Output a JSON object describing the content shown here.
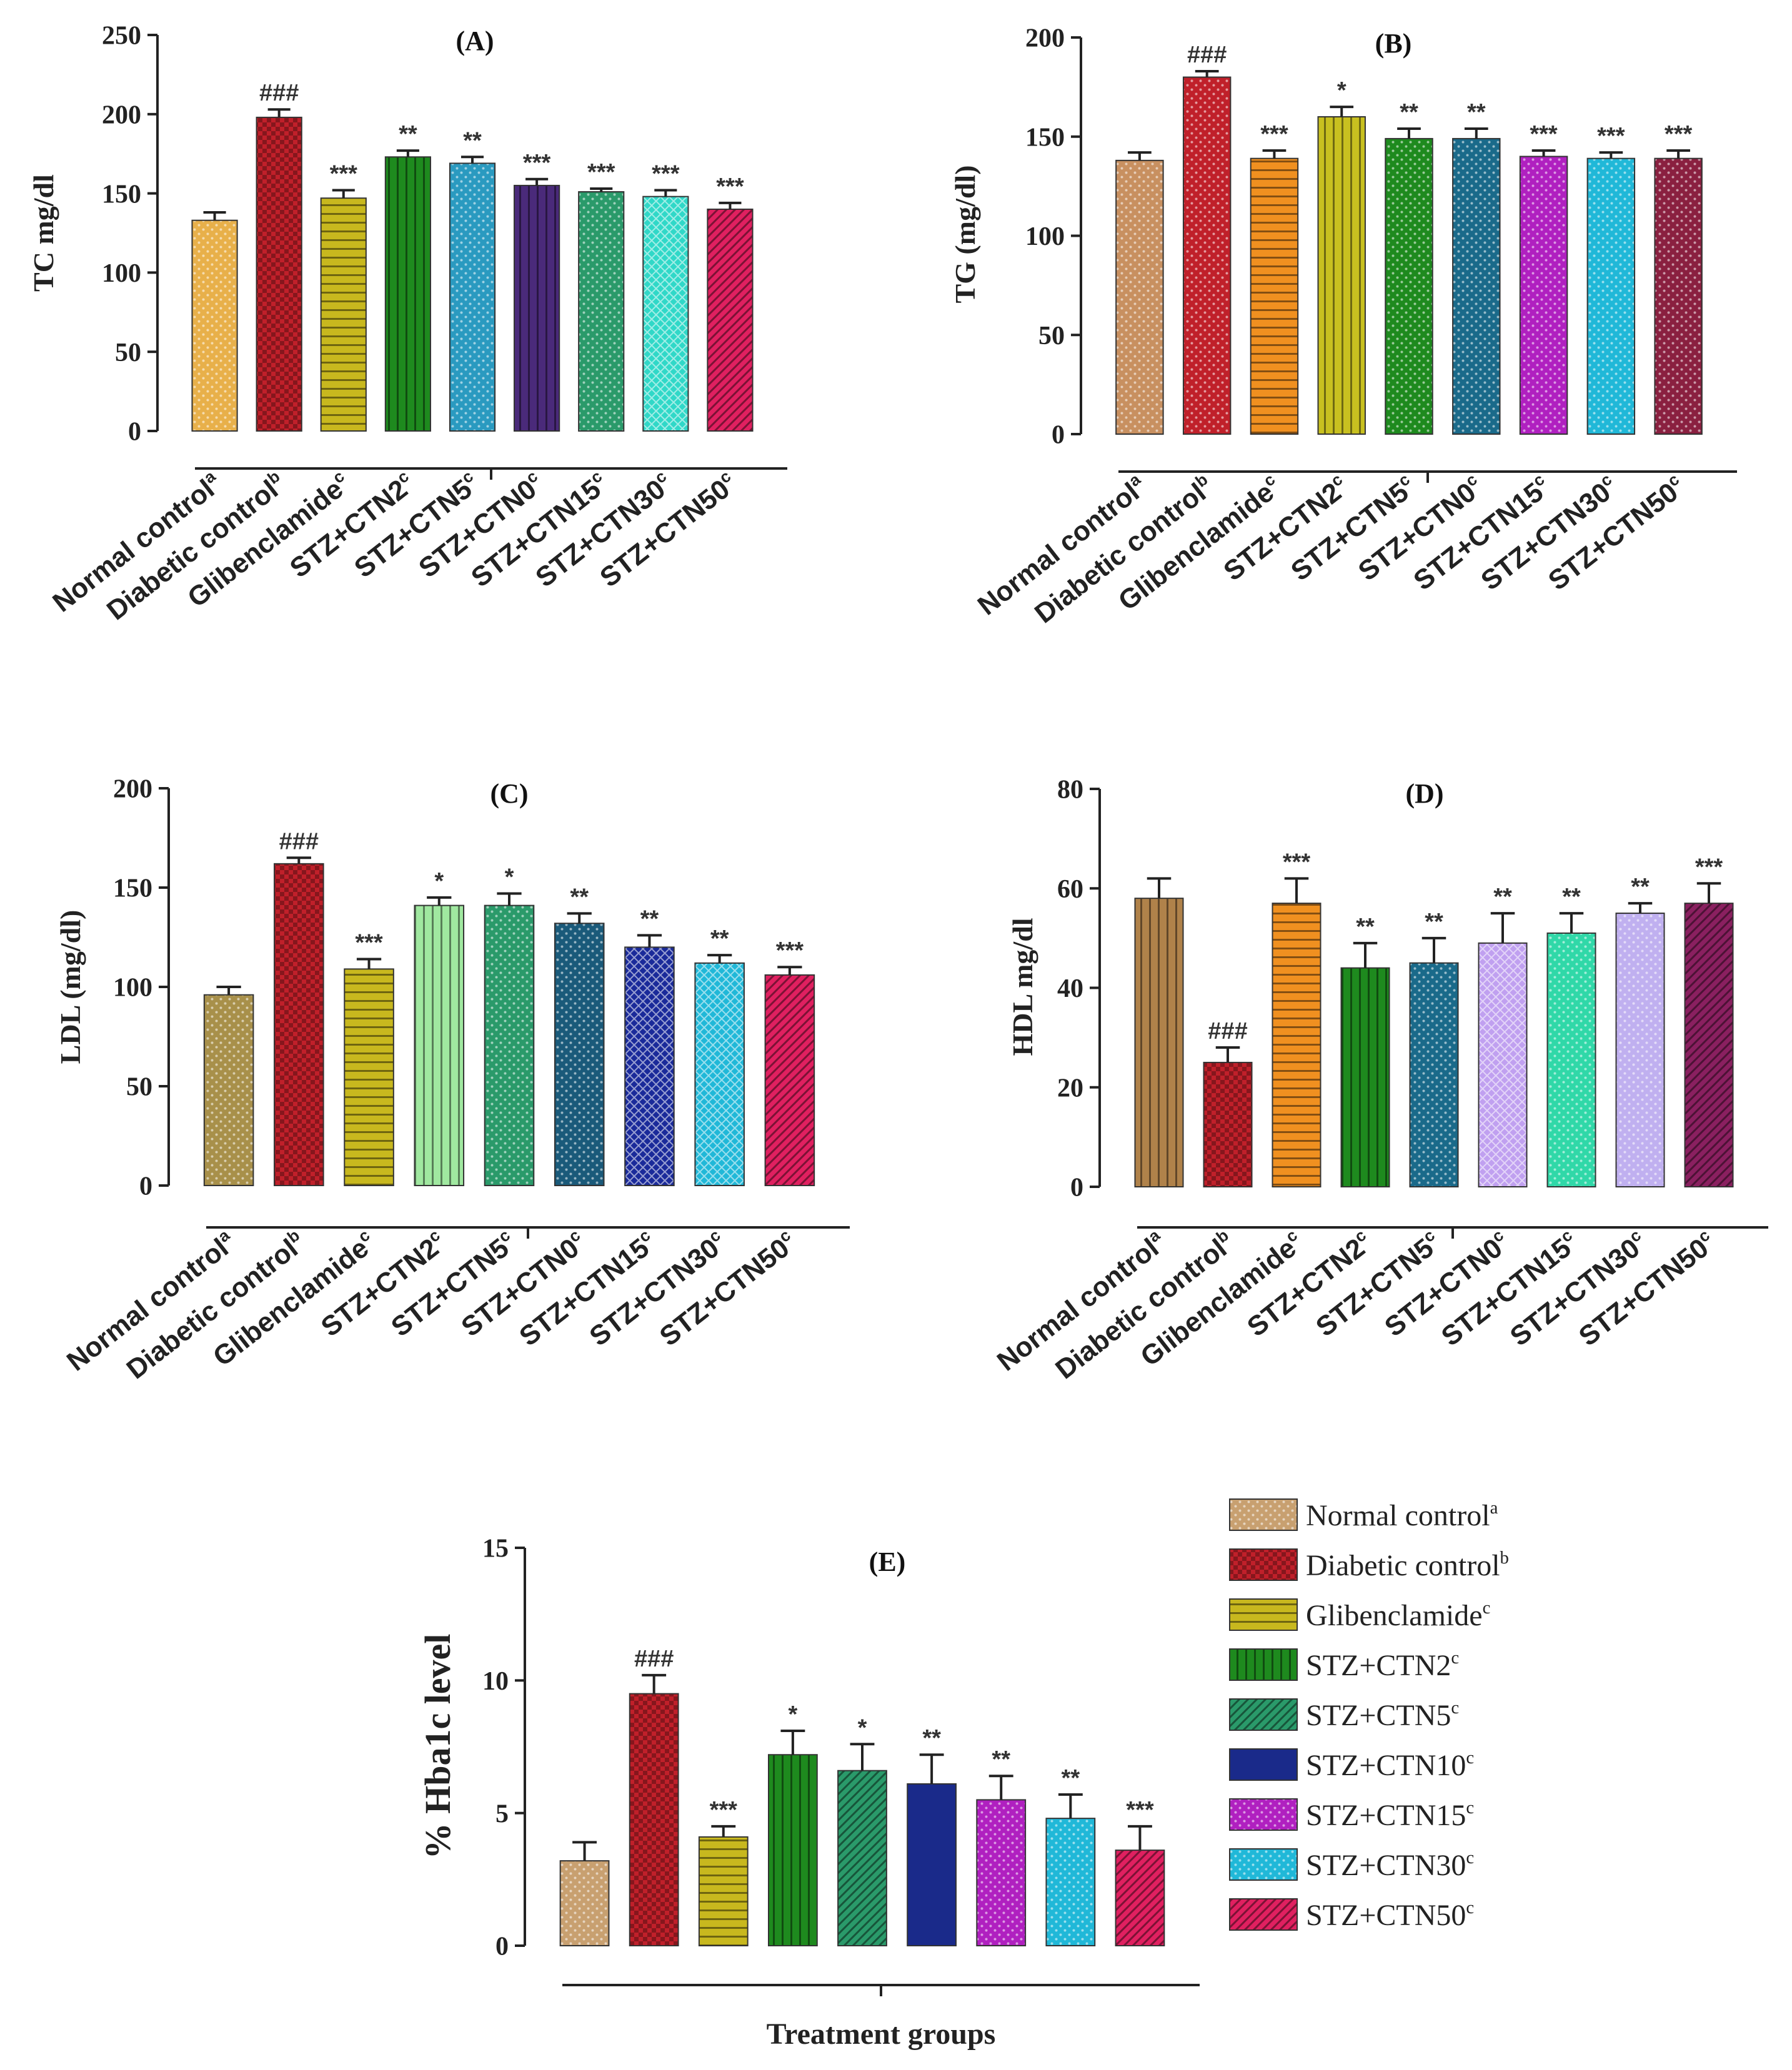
{
  "colors": {
    "normal_control": "#e8b04a",
    "diabetic_control": "#c0202a",
    "glibenclamide": "#c8b81e",
    "ctn2": "#1e8a1e",
    "ctn5": "#2a9a6a",
    "ctn10": "#1a2a8a",
    "ctn15": "#b020c0",
    "ctn30": "#20b8d8",
    "ctn50": "#e02060"
  },
  "chart_data": [
    {
      "id": "A",
      "type": "bar",
      "title": "(A)",
      "ylabel": "TC mg/dl",
      "xlabel": "",
      "ylim": [
        0,
        250
      ],
      "yticks": [
        "0",
        "50",
        "100",
        "150",
        "200",
        "250"
      ],
      "categories": [
        {
          "text": "Normal control",
          "sup": "a"
        },
        {
          "text": "Diabetic control",
          "sup": "b"
        },
        {
          "text": "Glibenclamide",
          "sup": "c"
        },
        {
          "text": "STZ+CTN2",
          "sup": "c"
        },
        {
          "text": "STZ+CTN5",
          "sup": "c"
        },
        {
          "text": "STZ+CTN0",
          "sup": "c"
        },
        {
          "text": "STZ+CTN15",
          "sup": "c"
        },
        {
          "text": "STZ+CTN30",
          "sup": "c"
        },
        {
          "text": "STZ+CTN50",
          "sup": "c"
        }
      ],
      "values": [
        133,
        198,
        147,
        173,
        169,
        155,
        151,
        148,
        140
      ],
      "errors": [
        5,
        5,
        5,
        4,
        4,
        4,
        2,
        4,
        4
      ],
      "significance": [
        "",
        "###",
        "***",
        "**",
        "**",
        "***",
        "***",
        "***",
        "***"
      ],
      "bar_colors": [
        "#e8b04a",
        "#c0202a",
        "#c8b81e",
        "#1e8a1e",
        "#2a9ac0",
        "#4a2a7a",
        "#2a9a6a",
        "#30d8c8",
        "#e02060"
      ],
      "patterns": [
        "dots",
        "check",
        "hlines",
        "vlines",
        "dots",
        "vlines",
        "dots",
        "cross",
        "diag"
      ]
    },
    {
      "id": "B",
      "type": "bar",
      "title": "(B)",
      "ylabel": "TG (mg/dl)",
      "xlabel": "",
      "ylim": [
        0,
        200
      ],
      "yticks": [
        "0",
        "50",
        "100",
        "150",
        "200"
      ],
      "categories": [
        {
          "text": "Normal control",
          "sup": "a"
        },
        {
          "text": "Diabetic control",
          "sup": "b"
        },
        {
          "text": "Glibenclamide",
          "sup": "c"
        },
        {
          "text": "STZ+CTN2",
          "sup": "c"
        },
        {
          "text": "STZ+CTN5",
          "sup": "c"
        },
        {
          "text": "STZ+CTN0",
          "sup": "c"
        },
        {
          "text": "STZ+CTN15",
          "sup": "c"
        },
        {
          "text": "STZ+CTN30",
          "sup": "c"
        },
        {
          "text": "STZ+CTN50",
          "sup": "c"
        }
      ],
      "values": [
        138,
        180,
        139,
        160,
        149,
        149,
        140,
        139,
        139
      ],
      "errors": [
        4,
        3,
        4,
        5,
        5,
        5,
        3,
        3,
        4
      ],
      "significance": [
        "",
        "###",
        "***",
        "*",
        "**",
        "**",
        "***",
        "***",
        "***"
      ],
      "bar_colors": [
        "#c89060",
        "#c0202a",
        "#f09020",
        "#c8c020",
        "#1e8a1e",
        "#1a6a8a",
        "#b020c0",
        "#20b8d8",
        "#8a2040"
      ],
      "patterns": [
        "dots",
        "dots",
        "hlines",
        "vlines",
        "dots",
        "dots",
        "dots",
        "dots",
        "dots"
      ]
    },
    {
      "id": "C",
      "type": "bar",
      "title": "(C)",
      "ylabel": "LDL (mg/dl)",
      "xlabel": "",
      "ylim": [
        0,
        200
      ],
      "yticks": [
        "0",
        "50",
        "100",
        "150",
        "200"
      ],
      "categories": [
        {
          "text": "Normal control",
          "sup": "a"
        },
        {
          "text": "Diabetic control",
          "sup": "b"
        },
        {
          "text": "Glibenclamide",
          "sup": "c"
        },
        {
          "text": "STZ+CTN2",
          "sup": "c"
        },
        {
          "text": "STZ+CTN5",
          "sup": "c"
        },
        {
          "text": "STZ+CTN0",
          "sup": "c"
        },
        {
          "text": "STZ+CTN15",
          "sup": "c"
        },
        {
          "text": "STZ+CTN30",
          "sup": "c"
        },
        {
          "text": "STZ+CTN50",
          "sup": "c"
        }
      ],
      "values": [
        96,
        162,
        109,
        141,
        141,
        132,
        120,
        112,
        106
      ],
      "errors": [
        4,
        3,
        5,
        4,
        6,
        5,
        6,
        4,
        4
      ],
      "significance": [
        "",
        "###",
        "***",
        "*",
        "*",
        "**",
        "**",
        "**",
        "***"
      ],
      "bar_colors": [
        "#a8904a",
        "#c0202a",
        "#c8b81e",
        "#a0e8a0",
        "#2a9a6a",
        "#1a5a7a",
        "#1a2a9a",
        "#20b8d8",
        "#e02060"
      ],
      "patterns": [
        "dots",
        "check",
        "hlines",
        "vlines",
        "dots",
        "dots",
        "cross",
        "cross",
        "diag"
      ]
    },
    {
      "id": "D",
      "type": "bar",
      "title": "(D)",
      "ylabel": "HDL mg/dl",
      "xlabel": "",
      "ylim": [
        0,
        80
      ],
      "yticks": [
        "0",
        "20",
        "40",
        "60",
        "80"
      ],
      "categories": [
        {
          "text": "Normal control",
          "sup": "a"
        },
        {
          "text": "Diabetic control",
          "sup": "b"
        },
        {
          "text": "Glibenclamide",
          "sup": "c"
        },
        {
          "text": "STZ+CTN2",
          "sup": "c"
        },
        {
          "text": "STZ+CTN5",
          "sup": "c"
        },
        {
          "text": "STZ+CTN0",
          "sup": "c"
        },
        {
          "text": "STZ+CTN15",
          "sup": "c"
        },
        {
          "text": "STZ+CTN30",
          "sup": "c"
        },
        {
          "text": "STZ+CTN50",
          "sup": "c"
        }
      ],
      "values": [
        58,
        25,
        57,
        44,
        45,
        49,
        51,
        55,
        57
      ],
      "errors": [
        4,
        3,
        5,
        5,
        5,
        6,
        4,
        2,
        4
      ],
      "significance": [
        "",
        "###",
        "***",
        "**",
        "**",
        "**",
        "**",
        "**",
        "***"
      ],
      "bar_colors": [
        "#b0824a",
        "#c0202a",
        "#f09020",
        "#1e8a1e",
        "#1a6a8a",
        "#c0a0f0",
        "#30d8a8",
        "#c0b0f0",
        "#8a2060"
      ],
      "patterns": [
        "vlines",
        "check",
        "hlines",
        "vlines",
        "dots",
        "cross",
        "dots",
        "dots",
        "diag"
      ]
    },
    {
      "id": "E",
      "type": "bar",
      "title": "(E)",
      "ylabel": "% Hba1c level",
      "xlabel": "Treatment groups",
      "ylim": [
        0,
        15
      ],
      "yticks": [
        "0",
        "5",
        "10",
        "15"
      ],
      "categories": [
        {
          "text": "Normal control",
          "sup": "a"
        },
        {
          "text": "Diabetic control",
          "sup": "b"
        },
        {
          "text": "Glibenclamide",
          "sup": "c"
        },
        {
          "text": "STZ+CTN2",
          "sup": "c"
        },
        {
          "text": "STZ+CTN5",
          "sup": "c"
        },
        {
          "text": "STZ+CTN10",
          "sup": "c"
        },
        {
          "text": "STZ+CTN15",
          "sup": "c"
        },
        {
          "text": "STZ+CTN30",
          "sup": "c"
        },
        {
          "text": "STZ+CTN50",
          "sup": "c"
        }
      ],
      "values": [
        3.2,
        9.5,
        4.1,
        7.2,
        6.6,
        6.1,
        5.5,
        4.8,
        3.6
      ],
      "errors": [
        0.7,
        0.7,
        0.4,
        0.9,
        1.0,
        1.1,
        0.9,
        0.9,
        0.9
      ],
      "significance": [
        "",
        "###",
        "***",
        "*",
        "*",
        "**",
        "**",
        "**",
        "***"
      ],
      "bar_colors": [
        "#c8a070",
        "#c0202a",
        "#c8b81e",
        "#1e8a1e",
        "#2a9a6a",
        "#1a2a8a",
        "#b020c0",
        "#20b8d8",
        "#e02060"
      ],
      "patterns": [
        "dots",
        "check",
        "hlines",
        "vlines",
        "diag",
        "none",
        "dots",
        "dots",
        "diag"
      ]
    }
  ],
  "legend": {
    "items": [
      {
        "text": "Normal control",
        "sup": "a",
        "color": "#c8a070",
        "pattern": "dots"
      },
      {
        "text": "Diabetic control",
        "sup": "b",
        "color": "#c0202a",
        "pattern": "check"
      },
      {
        "text": "Glibenclamide",
        "sup": "c",
        "color": "#c8b81e",
        "pattern": "hlines"
      },
      {
        "text": "STZ+CTN2",
        "sup": "c",
        "color": "#1e8a1e",
        "pattern": "vlines"
      },
      {
        "text": "STZ+CTN5",
        "sup": "c",
        "color": "#2a9a6a",
        "pattern": "diag"
      },
      {
        "text": "STZ+CTN10",
        "sup": "c",
        "color": "#1a2a8a",
        "pattern": "none"
      },
      {
        "text": "STZ+CTN15",
        "sup": "c",
        "color": "#b020c0",
        "pattern": "dots"
      },
      {
        "text": "STZ+CTN30",
        "sup": "c",
        "color": "#20b8d8",
        "pattern": "dots"
      },
      {
        "text": "STZ+CTN50",
        "sup": "c",
        "color": "#e02060",
        "pattern": "diag"
      }
    ]
  }
}
